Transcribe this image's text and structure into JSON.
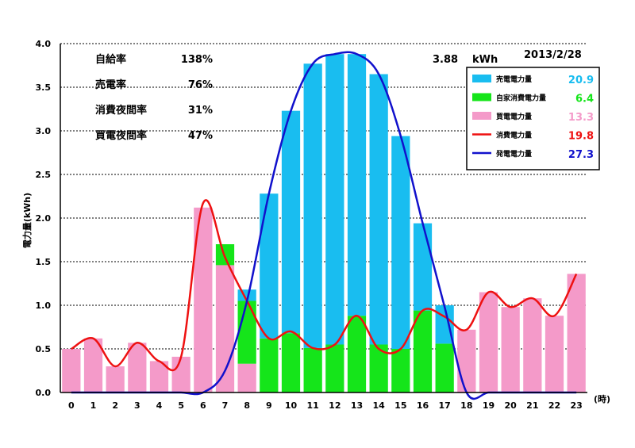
{
  "chart_data": {
    "type": "bar",
    "date": "2013/2/28",
    "peak_value": "3.88",
    "peak_unit": "kWh",
    "ylabel": "電力量(kWh)",
    "xunit": "(時)",
    "ylim": [
      0,
      4
    ],
    "y_ticks": [
      "0.0",
      "0.5",
      "1.0",
      "1.5",
      "2.0",
      "2.5",
      "3.0",
      "3.5",
      "4.0"
    ],
    "categories": [
      "0",
      "1",
      "2",
      "3",
      "4",
      "5",
      "6",
      "7",
      "8",
      "9",
      "10",
      "11",
      "12",
      "13",
      "14",
      "15",
      "16",
      "17",
      "18",
      "19",
      "20",
      "21",
      "22",
      "23"
    ],
    "stats": [
      {
        "label": "自給率",
        "value": "138%"
      },
      {
        "label": "売電率",
        "value": "76%"
      },
      {
        "label": "消費夜間率",
        "value": "31%"
      },
      {
        "label": "買電夜間率",
        "value": "47%"
      }
    ],
    "series": [
      {
        "name": "売電電力量",
        "kind": "bar",
        "color": "#19bdf0",
        "total": "20.9",
        "values": [
          0,
          0,
          0,
          0,
          0,
          0,
          0,
          0,
          0.13,
          1.66,
          2.55,
          3.26,
          3.33,
          3.0,
          3.1,
          2.44,
          1.0,
          0.44,
          0,
          0,
          0,
          0,
          0,
          0
        ]
      },
      {
        "name": "自家消費電力量",
        "kind": "bar",
        "color": "#15e51a",
        "total": "6.4",
        "values": [
          0,
          0,
          0,
          0,
          0,
          0,
          0,
          0.24,
          0.72,
          0.62,
          0.68,
          0.51,
          0.55,
          0.88,
          0.55,
          0.5,
          0.94,
          0.56,
          0,
          0,
          0,
          0,
          0,
          0
        ]
      },
      {
        "name": "買電電力量",
        "kind": "bar",
        "color": "#f49ac9",
        "total": "13.3",
        "values": [
          0.5,
          0.62,
          0.3,
          0.57,
          0.36,
          0.41,
          2.12,
          1.46,
          0.33,
          0,
          0,
          0,
          0,
          0,
          0,
          0,
          0,
          0,
          0.72,
          1.15,
          0.98,
          1.08,
          0.88,
          1.36
        ]
      },
      {
        "name": "消費電力量",
        "kind": "line",
        "color": "#ee1111",
        "total": "19.8",
        "values": [
          0.5,
          0.62,
          0.3,
          0.57,
          0.36,
          0.41,
          2.17,
          1.55,
          1.05,
          0.62,
          0.7,
          0.51,
          0.55,
          0.88,
          0.5,
          0.5,
          0.94,
          0.87,
          0.72,
          1.15,
          0.98,
          1.08,
          0.88,
          1.36
        ]
      },
      {
        "name": "発電電力量",
        "kind": "line",
        "color": "#1111cc",
        "total": "27.3",
        "values": [
          0,
          0,
          0,
          0,
          0,
          0,
          0,
          0.25,
          1.05,
          2.28,
          3.23,
          3.77,
          3.88,
          3.88,
          3.65,
          2.94,
          1.94,
          0.98,
          0,
          0,
          0,
          0,
          0,
          0
        ]
      }
    ]
  }
}
